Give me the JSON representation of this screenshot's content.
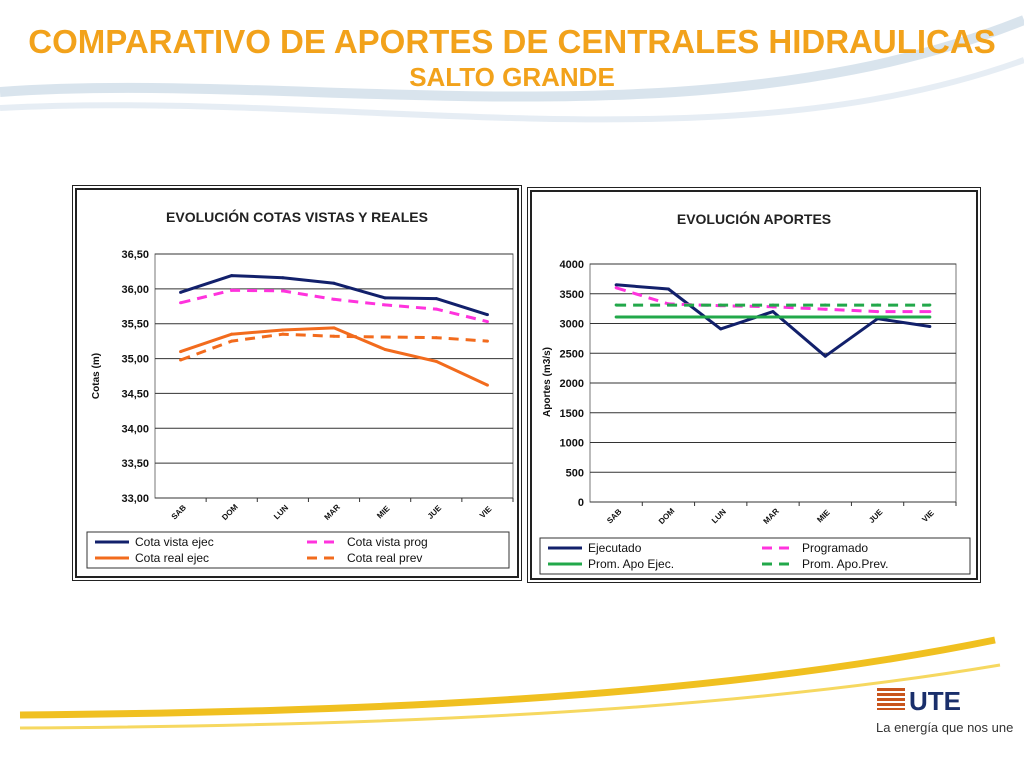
{
  "slide": {
    "title": "COMPARATIVO DE APORTES DE CENTRALES HIDRAULICAS",
    "subtitle": "SALTO GRANDE"
  },
  "footer": {
    "logo_text": "UTE",
    "tagline": "La energía que nos une"
  },
  "chart_data": [
    {
      "type": "line",
      "title": "EVOLUCIÓN  COTAS VISTAS Y REALES",
      "ylabel": "Cotas (m)",
      "xlabel": "",
      "categories": [
        "SAB",
        "DOM",
        "LUN",
        "MAR",
        "MIE",
        "JUE",
        "VIE"
      ],
      "ylim": [
        33.0,
        36.5
      ],
      "yticks": [
        "36,50",
        "36,00",
        "35,50",
        "35,00",
        "34,50",
        "34,00",
        "33,50",
        "33,00"
      ],
      "grid": true,
      "legend_position": "bottom",
      "series": [
        {
          "name": "Cota vista ejec",
          "color": "#12206b",
          "style": "solid",
          "values": [
            35.95,
            36.19,
            36.16,
            36.08,
            35.87,
            35.86,
            35.63
          ]
        },
        {
          "name": "Cota vista prog",
          "color": "#ff33dd",
          "style": "dashed",
          "values": [
            35.8,
            35.98,
            35.97,
            35.85,
            35.77,
            35.71,
            35.53
          ]
        },
        {
          "name": "Cota real ejec",
          "color": "#f26b1d",
          "style": "solid",
          "values": [
            35.1,
            35.35,
            35.41,
            35.44,
            35.13,
            34.96,
            34.62
          ]
        },
        {
          "name": "Cota real prev",
          "color": "#f26b1d",
          "style": "dashed",
          "values": [
            34.98,
            35.25,
            35.35,
            35.32,
            35.31,
            35.3,
            35.25
          ]
        }
      ]
    },
    {
      "type": "line",
      "title": "EVOLUCIÓN  APORTES",
      "ylabel": "Aportes (m3/s)",
      "xlabel": "",
      "categories": [
        "SAB",
        "DOM",
        "LUN",
        "MAR",
        "MIE",
        "JUE",
        "VIE"
      ],
      "ylim": [
        0,
        4000
      ],
      "yticks": [
        "4000",
        "3500",
        "3000",
        "2500",
        "2000",
        "1500",
        "1000",
        "500",
        "0"
      ],
      "grid": true,
      "legend_position": "bottom",
      "series": [
        {
          "name": "Ejecutado",
          "color": "#12206b",
          "style": "solid",
          "values": [
            3650,
            3580,
            2910,
            3200,
            2450,
            3080,
            2950
          ]
        },
        {
          "name": "Programado",
          "color": "#ff33dd",
          "style": "dashed",
          "values": [
            3600,
            3330,
            3300,
            3280,
            3240,
            3200,
            3200
          ]
        },
        {
          "name": "Prom. Apo Ejec.",
          "color": "#22a84a",
          "style": "solid",
          "values": [
            3110,
            3110,
            3110,
            3110,
            3110,
            3110,
            3110
          ]
        },
        {
          "name": "Prom. Apo.Prev.",
          "color": "#22a84a",
          "style": "dashed",
          "values": [
            3310,
            3310,
            3310,
            3310,
            3310,
            3310,
            3310
          ]
        }
      ]
    }
  ]
}
